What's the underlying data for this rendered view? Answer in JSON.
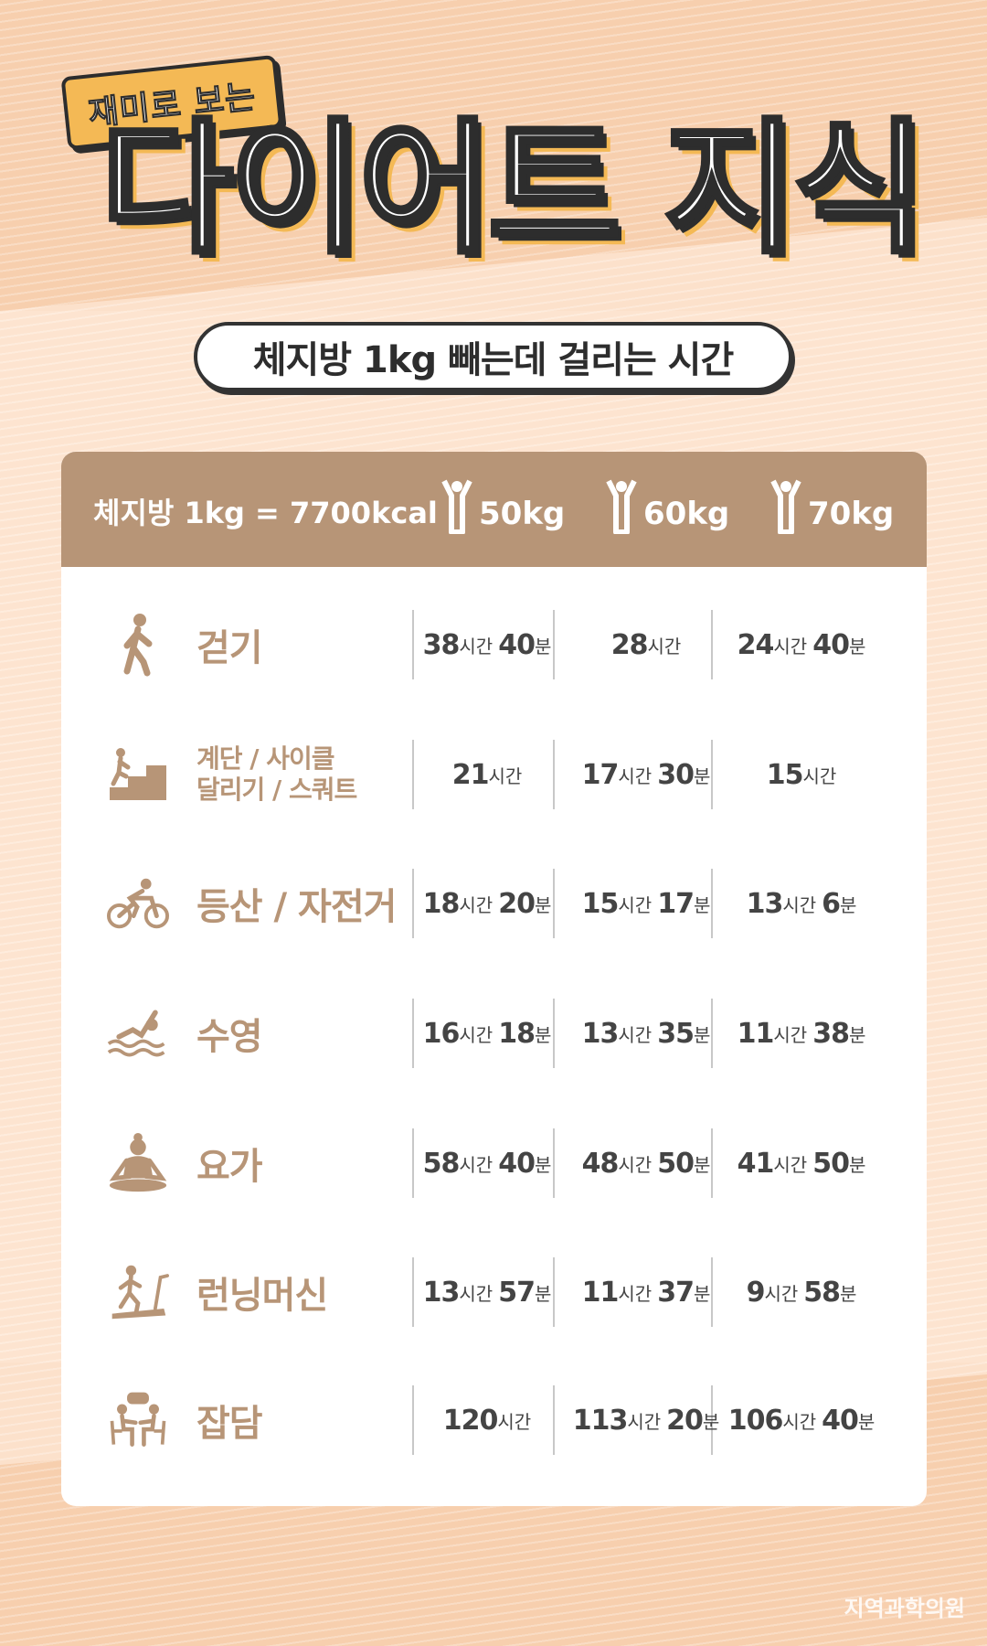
{
  "header": {
    "tag": "재미로 보는",
    "title": "다이어트 지식",
    "subtitle": "체지방 1kg 빼는데 걸리는 시간"
  },
  "table": {
    "formula": "체지방 1kg = 7700kcal",
    "weights": [
      "50kg",
      "60kg",
      "70kg"
    ],
    "rows": [
      {
        "icon": "walking-icon",
        "label": [
          "걷기"
        ],
        "cells": [
          [
            [
              "38",
              "시간"
            ],
            [
              "40",
              "분"
            ]
          ],
          [
            [
              "28",
              "시간"
            ]
          ],
          [
            [
              "24",
              "시간"
            ],
            [
              "40",
              "분"
            ]
          ]
        ]
      },
      {
        "icon": "stairs-icon",
        "label": [
          "계단 / 사이클",
          "달리기 / 스쿼트"
        ],
        "cells": [
          [
            [
              "21",
              "시간"
            ]
          ],
          [
            [
              "17",
              "시간"
            ],
            [
              "30",
              "분"
            ]
          ],
          [
            [
              "15",
              "시간"
            ]
          ]
        ]
      },
      {
        "icon": "cycling-icon",
        "label": [
          "등산 / 자전거"
        ],
        "cells": [
          [
            [
              "18",
              "시간"
            ],
            [
              "20",
              "분"
            ]
          ],
          [
            [
              "15",
              "시간"
            ],
            [
              "17",
              "분"
            ]
          ],
          [
            [
              "13",
              "시간"
            ],
            [
              "6",
              "분"
            ]
          ]
        ]
      },
      {
        "icon": "swimming-icon",
        "label": [
          "수영"
        ],
        "cells": [
          [
            [
              "16",
              "시간"
            ],
            [
              "18",
              "분"
            ]
          ],
          [
            [
              "13",
              "시간"
            ],
            [
              "35",
              "분"
            ]
          ],
          [
            [
              "11",
              "시간"
            ],
            [
              "38",
              "분"
            ]
          ]
        ]
      },
      {
        "icon": "yoga-icon",
        "label": [
          "요가"
        ],
        "cells": [
          [
            [
              "58",
              "시간"
            ],
            [
              "40",
              "분"
            ]
          ],
          [
            [
              "48",
              "시간"
            ],
            [
              "50",
              "분"
            ]
          ],
          [
            [
              "41",
              "시간"
            ],
            [
              "50",
              "분"
            ]
          ]
        ]
      },
      {
        "icon": "treadmill-icon",
        "label": [
          "런닝머신"
        ],
        "cells": [
          [
            [
              "13",
              "시간"
            ],
            [
              "57",
              "분"
            ]
          ],
          [
            [
              "11",
              "시간"
            ],
            [
              "37",
              "분"
            ]
          ],
          [
            [
              "9",
              "시간"
            ],
            [
              "58",
              "분"
            ]
          ]
        ]
      },
      {
        "icon": "chatting-icon",
        "label": [
          "잡담"
        ],
        "cells": [
          [
            [
              "120",
              "시간"
            ]
          ],
          [
            [
              "113",
              "시간"
            ],
            [
              "20",
              "분"
            ]
          ],
          [
            [
              "106",
              "시간"
            ],
            [
              "40",
              "분"
            ]
          ]
        ]
      }
    ]
  },
  "watermark": "지역과학의원",
  "colors": {
    "brown": "#b79577",
    "yellow": "#f4b955",
    "background": "#fce1cb"
  }
}
